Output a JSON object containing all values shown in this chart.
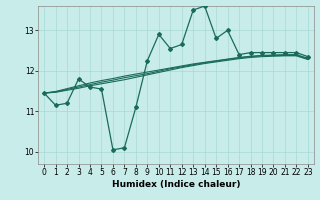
{
  "xlabel": "Humidex (Indice chaleur)",
  "background_color": "#c8ecea",
  "grid_color": "#a8d8d4",
  "line_color": "#1a6b5a",
  "xlim": [
    -0.5,
    23.5
  ],
  "ylim": [
    9.7,
    13.6
  ],
  "yticks": [
    10,
    11,
    12,
    13
  ],
  "xticks": [
    0,
    1,
    2,
    3,
    4,
    5,
    6,
    7,
    8,
    9,
    10,
    11,
    12,
    13,
    14,
    15,
    16,
    17,
    18,
    19,
    20,
    21,
    22,
    23
  ],
  "series1_x": [
    0,
    1,
    2,
    3,
    4,
    5,
    6,
    7,
    8,
    9,
    10,
    11,
    12,
    13,
    14,
    15,
    16,
    17,
    18,
    19,
    20,
    21,
    22,
    23
  ],
  "series1_y": [
    11.45,
    11.15,
    11.2,
    11.8,
    11.6,
    11.55,
    10.05,
    10.1,
    11.1,
    12.25,
    12.9,
    12.55,
    12.65,
    13.5,
    13.6,
    12.8,
    13.0,
    12.4,
    12.45,
    12.45,
    12.45,
    12.45,
    12.45,
    12.35
  ],
  "series2_x": [
    0,
    1,
    2,
    3,
    4,
    5,
    6,
    7,
    8,
    9,
    10,
    11,
    12,
    13,
    14,
    15,
    16,
    17,
    18,
    19,
    20,
    21,
    22,
    23
  ],
  "series2_y": [
    11.45,
    11.47,
    11.52,
    11.57,
    11.63,
    11.68,
    11.73,
    11.78,
    11.84,
    11.9,
    11.96,
    12.02,
    12.08,
    12.13,
    12.18,
    12.22,
    12.26,
    12.3,
    12.33,
    12.35,
    12.36,
    12.37,
    12.37,
    12.28
  ],
  "series3_x": [
    0,
    1,
    2,
    3,
    4,
    5,
    6,
    7,
    8,
    9,
    10,
    11,
    12,
    13,
    14,
    15,
    16,
    17,
    18,
    19,
    20,
    21,
    22,
    23
  ],
  "series3_y": [
    11.45,
    11.48,
    11.54,
    11.6,
    11.66,
    11.72,
    11.77,
    11.83,
    11.88,
    11.93,
    11.99,
    12.05,
    12.1,
    12.15,
    12.2,
    12.24,
    12.28,
    12.32,
    12.35,
    12.37,
    12.38,
    12.38,
    12.38,
    12.29
  ],
  "series4_x": [
    0,
    1,
    2,
    3,
    4,
    5,
    6,
    7,
    8,
    9,
    10,
    11,
    12,
    13,
    14,
    15,
    16,
    17,
    18,
    19,
    20,
    21,
    22,
    23
  ],
  "series4_y": [
    11.45,
    11.49,
    11.56,
    11.63,
    11.7,
    11.76,
    11.81,
    11.87,
    11.92,
    11.97,
    12.02,
    12.07,
    12.12,
    12.17,
    12.21,
    12.25,
    12.29,
    12.33,
    12.36,
    12.38,
    12.39,
    12.4,
    12.4,
    12.31
  ]
}
